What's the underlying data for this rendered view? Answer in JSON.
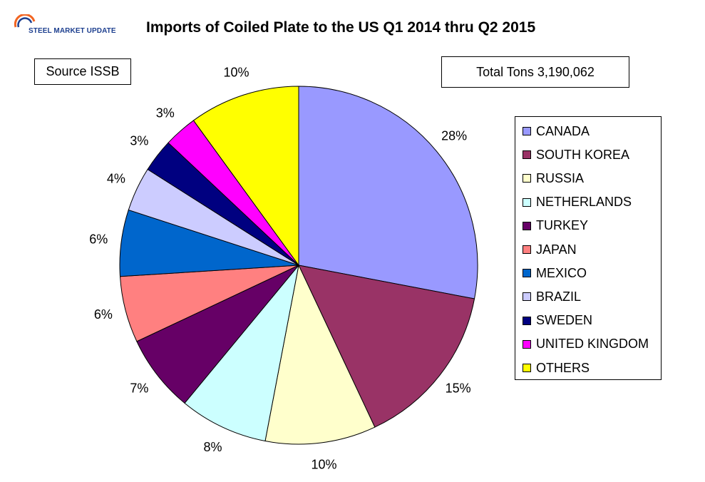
{
  "logo": {
    "text": "STEEL MARKET UPDATE",
    "colors": [
      "#1d3f8f",
      "#f26522"
    ]
  },
  "title": "Imports of Coiled Plate to the US Q1 2014 thru Q2 2015",
  "source_label": "Source ISSB",
  "total_label": "Total Tons",
  "total_value": "3,190,062",
  "chart_data": {
    "type": "pie",
    "title": "Imports of Coiled Plate to the US Q1 2014 thru Q2 2015",
    "categories": [
      "CANADA",
      "SOUTH KOREA",
      "RUSSIA",
      "NETHERLANDS",
      "TURKEY",
      "JAPAN",
      "MEXICO",
      "BRAZIL",
      "SWEDEN",
      "UNITED KINGDOM",
      "OTHERS"
    ],
    "values": [
      28,
      15,
      10,
      8,
      7,
      6,
      6,
      4,
      3,
      3,
      10
    ],
    "labels": [
      "28%",
      "15%",
      "10%",
      "8%",
      "7%",
      "6%",
      "6%",
      "4%",
      "3%",
      "3%",
      "10%"
    ],
    "colors": [
      "#9999ff",
      "#993366",
      "#ffffcc",
      "#ccffff",
      "#660066",
      "#ff8080",
      "#0066cc",
      "#ccccff",
      "#000080",
      "#ff00ff",
      "#ffff00"
    ],
    "unit": "%",
    "start": "12 o'clock",
    "direction": "clockwise",
    "legend_position": "right"
  }
}
